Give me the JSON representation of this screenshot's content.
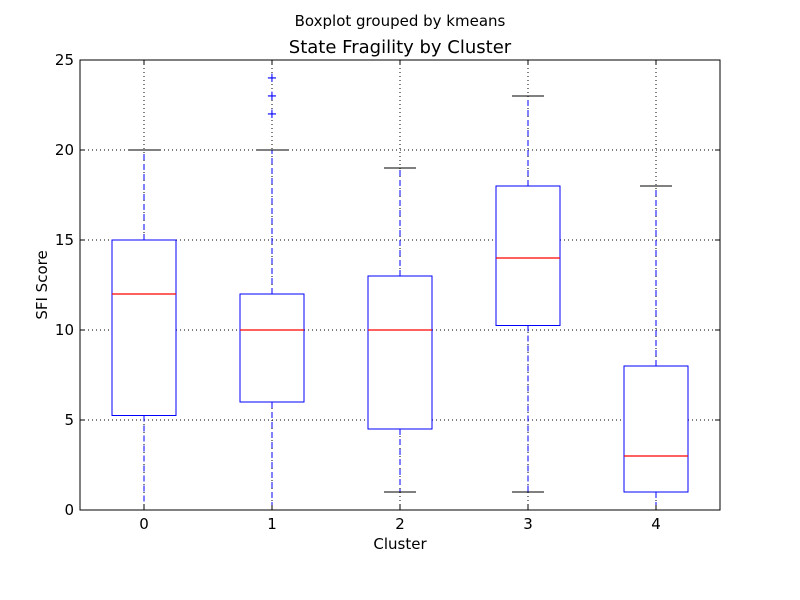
{
  "chart_data": {
    "type": "box",
    "suptitle": "Boxplot grouped by kmeans",
    "title": "State Fragility by Cluster",
    "xlabel": "Cluster",
    "ylabel": "SFI Score",
    "categories": [
      "0",
      "1",
      "2",
      "3",
      "4"
    ],
    "ylim": [
      0,
      25
    ],
    "yticks": [
      "0",
      "5",
      "10",
      "15",
      "20",
      "25"
    ],
    "grid": true,
    "boxes": [
      {
        "category": "0",
        "whisker_low": 0,
        "q1": 5.25,
        "median": 12,
        "q3": 15,
        "whisker_high": 20,
        "outliers": []
      },
      {
        "category": "1",
        "whisker_low": 0,
        "q1": 6,
        "median": 10,
        "q3": 12,
        "whisker_high": 20,
        "outliers": [
          22,
          23,
          24
        ]
      },
      {
        "category": "2",
        "whisker_low": 1,
        "q1": 4.5,
        "median": 10,
        "q3": 13,
        "whisker_high": 19,
        "outliers": []
      },
      {
        "category": "3",
        "whisker_low": 1,
        "q1": 10.25,
        "median": 14,
        "q3": 18,
        "whisker_high": 23,
        "outliers": []
      },
      {
        "category": "4",
        "whisker_low": 0,
        "q1": 1,
        "median": 3,
        "q3": 8,
        "whisker_high": 18,
        "outliers": []
      }
    ],
    "colors": {
      "box": "#0000ff",
      "median": "#ff0000",
      "cap": "#000000",
      "whisker": "#0000ff",
      "flier": "#0000ff",
      "grid": "#000000"
    }
  }
}
